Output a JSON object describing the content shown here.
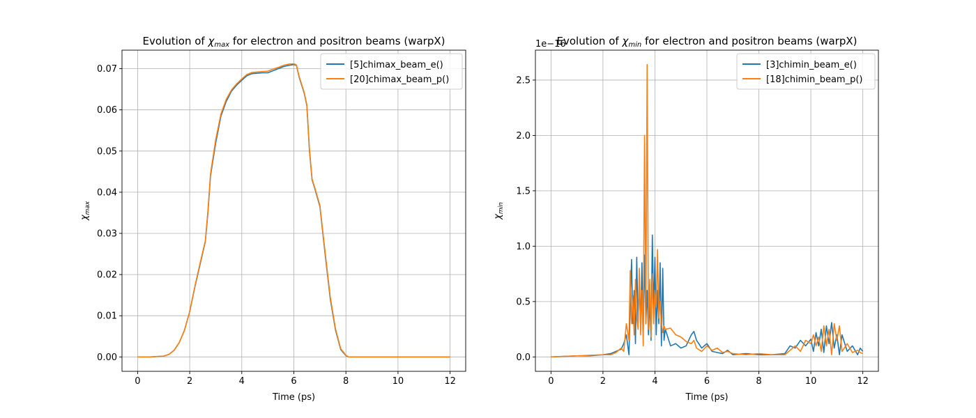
{
  "chart_data": [
    {
      "type": "line",
      "title_prefix": "Evolution of ",
      "title_symbol": "χ",
      "title_sub": "max",
      "title_suffix": " for electron and positron beams (warpX)",
      "xlabel": "Time (ps)",
      "ylabel_symbol": "χ",
      "ylabel_sub": "max",
      "xlim": [
        -0.6,
        12.6
      ],
      "ylim": [
        -0.0035,
        0.0745
      ],
      "xticks": [
        0,
        2,
        4,
        6,
        8,
        10,
        12
      ],
      "yticks": [
        0.0,
        0.01,
        0.02,
        0.03,
        0.04,
        0.05,
        0.06,
        0.07
      ],
      "ytick_labels": [
        "0.00",
        "0.01",
        "0.02",
        "0.03",
        "0.04",
        "0.05",
        "0.06",
        "0.07"
      ],
      "offset_text": "",
      "grid": true,
      "legend_position": "top-right",
      "series": [
        {
          "name": "[5]chimax_beam_e()",
          "color": "#1f77b4",
          "x": [
            0,
            0.5,
            1.0,
            1.2,
            1.4,
            1.6,
            1.8,
            2.0,
            2.2,
            2.4,
            2.6,
            2.7,
            2.8,
            3.0,
            3.2,
            3.4,
            3.6,
            3.8,
            4.0,
            4.2,
            4.4,
            4.6,
            4.8,
            5.0,
            5.2,
            5.4,
            5.6,
            5.8,
            6.0,
            6.1,
            6.2,
            6.4,
            6.5,
            6.6,
            6.7,
            6.8,
            7.0,
            7.2,
            7.4,
            7.6,
            7.8,
            8.0,
            8.1,
            8.5,
            9,
            10,
            11,
            12
          ],
          "y": [
            0,
            0,
            0.0002,
            0.0006,
            0.0016,
            0.0035,
            0.0065,
            0.011,
            0.017,
            0.0225,
            0.028,
            0.035,
            0.044,
            0.052,
            0.0585,
            0.062,
            0.0645,
            0.066,
            0.0672,
            0.0683,
            0.0688,
            0.0689,
            0.069,
            0.069,
            0.0695,
            0.07,
            0.0705,
            0.0708,
            0.071,
            0.0708,
            0.068,
            0.064,
            0.061,
            0.05,
            0.043,
            0.041,
            0.0365,
            0.025,
            0.014,
            0.0065,
            0.0018,
            0.0003,
            0,
            0,
            0,
            0,
            0,
            0
          ]
        },
        {
          "name": "[20]chimax_beam_p()",
          "color": "#ff7f0e",
          "x": [
            0,
            0.5,
            1.0,
            1.2,
            1.4,
            1.6,
            1.8,
            2.0,
            2.2,
            2.4,
            2.6,
            2.7,
            2.8,
            3.0,
            3.2,
            3.4,
            3.6,
            3.8,
            4.0,
            4.2,
            4.4,
            4.6,
            4.8,
            5.0,
            5.2,
            5.4,
            5.6,
            5.8,
            6.0,
            6.1,
            6.2,
            6.4,
            6.5,
            6.6,
            6.7,
            6.8,
            7.0,
            7.2,
            7.4,
            7.6,
            7.8,
            8.0,
            8.1,
            8.5,
            9,
            10,
            11,
            12
          ],
          "y": [
            0,
            0,
            0.0002,
            0.0006,
            0.0016,
            0.0035,
            0.0065,
            0.011,
            0.0172,
            0.0228,
            0.0282,
            0.0355,
            0.0445,
            0.0528,
            0.059,
            0.0625,
            0.0648,
            0.0663,
            0.0675,
            0.0686,
            0.0691,
            0.0692,
            0.0693,
            0.0694,
            0.0699,
            0.0703,
            0.0708,
            0.0711,
            0.0712,
            0.0709,
            0.0682,
            0.0642,
            0.0612,
            0.0505,
            0.0432,
            0.0412,
            0.0368,
            0.0255,
            0.0145,
            0.0068,
            0.002,
            0.0004,
            0,
            0,
            0,
            0,
            0,
            0
          ]
        }
      ]
    },
    {
      "type": "line",
      "title_prefix": "Evolution of ",
      "title_symbol": "χ",
      "title_sub": "min",
      "title_suffix": " for electron and positron beams (warpX)",
      "xlabel": "Time (ps)",
      "ylabel_symbol": "χ",
      "ylabel_sub": "min",
      "xlim": [
        -0.6,
        12.6
      ],
      "ylim": [
        -0.13,
        2.77
      ],
      "xticks": [
        0,
        2,
        4,
        6,
        8,
        10,
        12
      ],
      "yticks": [
        0.0,
        0.5,
        1.0,
        1.5,
        2.0,
        2.5
      ],
      "ytick_labels": [
        "0.0",
        "0.5",
        "1.0",
        "1.5",
        "2.0",
        "2.5"
      ],
      "offset_text": "1e−16",
      "grid": true,
      "legend_position": "top-right",
      "series": [
        {
          "name": "[3]chimin_beam_e()",
          "color": "#1f77b4",
          "x": [
            0,
            0.5,
            1.0,
            1.5,
            2.0,
            2.3,
            2.5,
            2.7,
            2.8,
            2.9,
            3.0,
            3.05,
            3.1,
            3.15,
            3.2,
            3.25,
            3.3,
            3.35,
            3.4,
            3.45,
            3.5,
            3.55,
            3.6,
            3.65,
            3.7,
            3.75,
            3.8,
            3.85,
            3.9,
            3.95,
            4.0,
            4.05,
            4.1,
            4.15,
            4.2,
            4.25,
            4.3,
            4.35,
            4.4,
            4.6,
            4.8,
            5.0,
            5.2,
            5.4,
            5.5,
            5.6,
            5.8,
            6.0,
            6.2,
            6.4,
            6.6,
            6.8,
            7.0,
            7.5,
            8.0,
            8.5,
            9.0,
            9.2,
            9.4,
            9.6,
            9.8,
            10.0,
            10.1,
            10.2,
            10.3,
            10.4,
            10.5,
            10.6,
            10.7,
            10.8,
            10.9,
            11.0,
            11.1,
            11.2,
            11.4,
            11.6,
            11.8,
            11.9,
            12.0
          ],
          "y": [
            0,
            0.005,
            0.01,
            0.01,
            0.02,
            0.03,
            0.05,
            0.07,
            0.12,
            0.2,
            0.02,
            0.45,
            0.88,
            0.3,
            0.6,
            0.12,
            0.9,
            0.3,
            0.7,
            0.25,
            0.85,
            0.2,
            0.92,
            0.3,
            0.6,
            0.2,
            0.5,
            0.15,
            1.1,
            0.4,
            0.9,
            0.2,
            0.6,
            0.3,
            0.85,
            0.1,
            0.8,
            0.15,
            0.25,
            0.1,
            0.12,
            0.08,
            0.1,
            0.2,
            0.23,
            0.15,
            0.08,
            0.12,
            0.05,
            0.04,
            0.03,
            0.06,
            0.02,
            0.03,
            0.02,
            0.02,
            0.03,
            0.1,
            0.08,
            0.15,
            0.1,
            0.16,
            0.05,
            0.22,
            0.1,
            0.25,
            0.04,
            0.28,
            0.12,
            0.31,
            0.08,
            0.2,
            0.02,
            0.2,
            0.05,
            0.1,
            0.02,
            0.08,
            0.05
          ]
        },
        {
          "name": "[18]chimin_beam_p()",
          "color": "#ff7f0e",
          "x": [
            0,
            0.5,
            1.0,
            1.5,
            2.0,
            2.3,
            2.5,
            2.7,
            2.8,
            2.9,
            3.0,
            3.05,
            3.1,
            3.15,
            3.2,
            3.25,
            3.3,
            3.35,
            3.4,
            3.45,
            3.5,
            3.55,
            3.6,
            3.65,
            3.7,
            3.75,
            3.8,
            3.85,
            3.9,
            3.95,
            4.0,
            4.05,
            4.1,
            4.15,
            4.2,
            4.25,
            4.3,
            4.35,
            4.4,
            4.6,
            4.8,
            5.0,
            5.2,
            5.4,
            5.5,
            5.6,
            5.8,
            6.0,
            6.2,
            6.4,
            6.6,
            6.8,
            7.0,
            7.5,
            8.0,
            8.5,
            9.0,
            9.2,
            9.4,
            9.6,
            9.8,
            10.0,
            10.1,
            10.2,
            10.3,
            10.4,
            10.5,
            10.6,
            10.7,
            10.8,
            10.9,
            11.0,
            11.1,
            11.2,
            11.4,
            11.6,
            11.8,
            11.9,
            12.0
          ],
          "y": [
            0,
            0.005,
            0.01,
            0.015,
            0.02,
            0.02,
            0.04,
            0.08,
            0.05,
            0.3,
            0.15,
            0.78,
            0.3,
            0.55,
            0.2,
            0.7,
            0.35,
            0.25,
            0.8,
            0.2,
            0.6,
            0.1,
            2.0,
            0.3,
            2.64,
            0.25,
            0.7,
            0.18,
            0.75,
            0.3,
            0.6,
            0.45,
            0.97,
            0.35,
            0.5,
            0.3,
            0.22,
            0.28,
            0.25,
            0.26,
            0.2,
            0.18,
            0.14,
            0.12,
            0.15,
            0.08,
            0.05,
            0.1,
            0.06,
            0.08,
            0.04,
            0.05,
            0.03,
            0.02,
            0.03,
            0.02,
            0.02,
            0.06,
            0.1,
            0.05,
            0.15,
            0.12,
            0.2,
            0.1,
            0.18,
            0.05,
            0.28,
            0.1,
            0.25,
            0.02,
            0.3,
            0.15,
            0.28,
            0.05,
            0.12,
            0.04,
            0.06,
            0.04,
            0.03
          ]
        }
      ]
    }
  ]
}
